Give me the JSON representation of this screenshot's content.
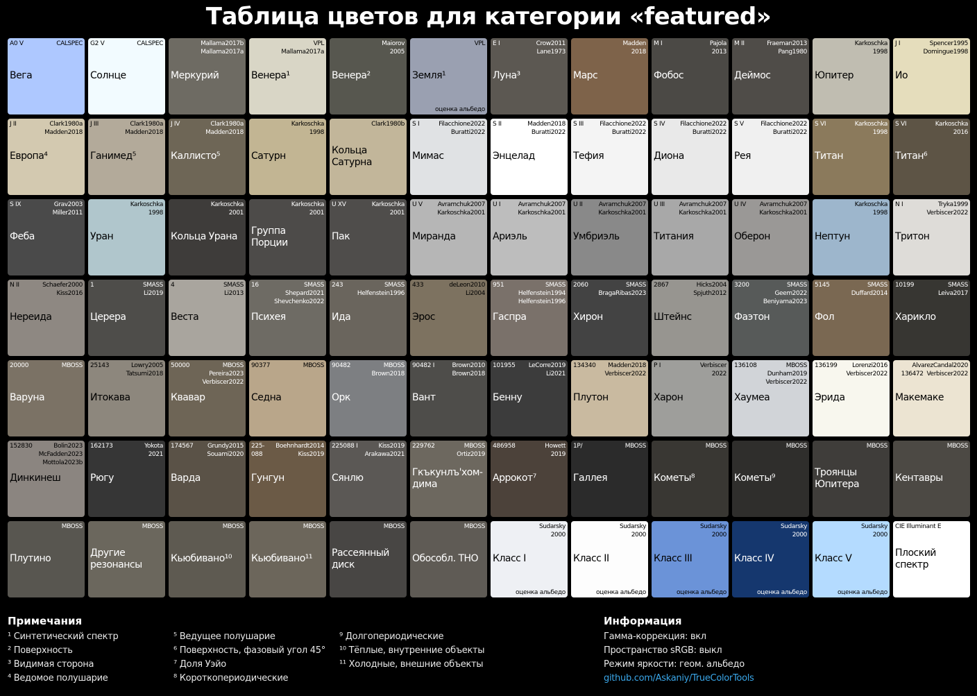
{
  "title": "Таблица цветов для категории «featured»",
  "tiles": [
    {
      "code": "A0 V",
      "ref": "CALSPEC",
      "name": "Вега",
      "note": "",
      "bg": "#aec8ff",
      "fg": "#000"
    },
    {
      "code": "G2 V",
      "ref": "CALSPEC",
      "name": "Солнце",
      "note": "",
      "bg": "#f2fbff",
      "fg": "#000"
    },
    {
      "code": "",
      "ref": "Mallama2017b\nMallama2017a",
      "name": "Меркурий",
      "note": "",
      "bg": "#6e6b63",
      "fg": "#fff"
    },
    {
      "code": "",
      "ref": "VPL\nMallama2017a",
      "name": "Венера¹",
      "note": "",
      "bg": "#d9d6c6",
      "fg": "#000"
    },
    {
      "code": "",
      "ref": "Maiorov\n2005",
      "name": "Венера²",
      "note": "",
      "bg": "#57574f",
      "fg": "#fff"
    },
    {
      "code": "",
      "ref": "VPL",
      "name": "Земля¹",
      "note": "оценка альбедо",
      "bg": "#9aa0b1",
      "fg": "#000"
    },
    {
      "code": "E I",
      "ref": "Crow2011\nLane1973",
      "name": "Луна³",
      "note": "",
      "bg": "#5c5852",
      "fg": "#fff"
    },
    {
      "code": "",
      "ref": "Madden\n2018",
      "name": "Марс",
      "note": "",
      "bg": "#7e634a",
      "fg": "#fff"
    },
    {
      "code": "M I",
      "ref": "Pajola\n2013",
      "name": "Фобос",
      "note": "",
      "bg": "#4b4945",
      "fg": "#fff"
    },
    {
      "code": "M II",
      "ref": "Fraeman2013\nPang1980",
      "name": "Деймос",
      "note": "",
      "bg": "#4f4c48",
      "fg": "#fff"
    },
    {
      "code": "",
      "ref": "Karkoschka\n1998",
      "name": "Юпитер",
      "note": "",
      "bg": "#c0bdb1",
      "fg": "#000"
    },
    {
      "code": "J I",
      "ref": "Spencer1995\nDomingue1998",
      "name": "Ио",
      "note": "",
      "bg": "#e5ddbc",
      "fg": "#000"
    },
    {
      "code": "J II",
      "ref": "Clark1980a\nMadden2018",
      "name": "Европа⁴",
      "note": "",
      "bg": "#d3c9b0",
      "fg": "#000"
    },
    {
      "code": "J III",
      "ref": "Clark1980a\nMadden2018",
      "name": "Ганимед⁵",
      "note": "",
      "bg": "#b3aa9a",
      "fg": "#000"
    },
    {
      "code": "J IV",
      "ref": "Clark1980a\nMadden2018",
      "name": "Каллисто⁵",
      "note": "",
      "bg": "#6e6656",
      "fg": "#fff"
    },
    {
      "code": "",
      "ref": "Karkoschka\n1998",
      "name": "Сатурн",
      "note": "",
      "bg": "#c2b593",
      "fg": "#000"
    },
    {
      "code": "",
      "ref": "Clark1980b",
      "name": "Кольца\nСатурна",
      "note": "",
      "bg": "#c2b69a",
      "fg": "#000"
    },
    {
      "code": "S I",
      "ref": "Filacchione2022\nBuratti2022",
      "name": "Мимас",
      "note": "",
      "bg": "#e0e2e4",
      "fg": "#000"
    },
    {
      "code": "S II",
      "ref": "Madden2018\nBuratti2022",
      "name": "Энцелад",
      "note": "",
      "bg": "#ffffff",
      "fg": "#000"
    },
    {
      "code": "S III",
      "ref": "Filacchione2022\nBuratti2022",
      "name": "Тефия",
      "note": "",
      "bg": "#f4f4f4",
      "fg": "#000"
    },
    {
      "code": "S IV",
      "ref": "Filacchione2022\nBuratti2022",
      "name": "Диона",
      "note": "",
      "bg": "#e9e9e9",
      "fg": "#000"
    },
    {
      "code": "S V",
      "ref": "Filacchione2022\nBuratti2022",
      "name": "Рея",
      "note": "",
      "bg": "#f0f0f0",
      "fg": "#000"
    },
    {
      "code": "S VI",
      "ref": "Karkoschka\n1998",
      "name": "Титан",
      "note": "",
      "bg": "#8b7a5c",
      "fg": "#fff"
    },
    {
      "code": "S VI",
      "ref": "Karkoschka\n2016",
      "name": "Титан⁶",
      "note": "",
      "bg": "#5d5445",
      "fg": "#fff"
    },
    {
      "code": "S IX",
      "ref": "Grav2003\nMiller2011",
      "name": "Феба",
      "note": "",
      "bg": "#4a4a4a",
      "fg": "#fff"
    },
    {
      "code": "",
      "ref": "Karkoschka\n1998",
      "name": "Уран",
      "note": "",
      "bg": "#b0c6cc",
      "fg": "#000"
    },
    {
      "code": "",
      "ref": "Karkoschka\n2001",
      "name": "Кольца Урана",
      "note": "",
      "bg": "#3e3c3a",
      "fg": "#fff"
    },
    {
      "code": "",
      "ref": "Karkoschka\n2001",
      "name": "Группа\nПорции",
      "note": "",
      "bg": "#4d4b49",
      "fg": "#fff"
    },
    {
      "code": "U XV",
      "ref": "Karkoschka\n2001",
      "name": "Пак",
      "note": "",
      "bg": "#4f4d4b",
      "fg": "#fff"
    },
    {
      "code": "U V",
      "ref": "Avramchuk2007\nKarkoschka2001",
      "name": "Миранда",
      "note": "",
      "bg": "#b6b6b6",
      "fg": "#000"
    },
    {
      "code": "U I",
      "ref": "Avramchuk2007\nKarkoschka2001",
      "name": "Ариэль",
      "note": "",
      "bg": "#bdbdbd",
      "fg": "#000"
    },
    {
      "code": "U II",
      "ref": "Avramchuk2007\nKarkoschka2001",
      "name": "Умбриэль",
      "note": "",
      "bg": "#898989",
      "fg": "#000"
    },
    {
      "code": "U III",
      "ref": "Avramchuk2007\nKarkoschka2001",
      "name": "Титания",
      "note": "",
      "bg": "#a8a8a8",
      "fg": "#000"
    },
    {
      "code": "U IV",
      "ref": "Avramchuk2007\nKarkoschka2001",
      "name": "Оберон",
      "note": "",
      "bg": "#9a9896",
      "fg": "#000"
    },
    {
      "code": "",
      "ref": "Karkoschka\n1998",
      "name": "Нептун",
      "note": "",
      "bg": "#9db6cc",
      "fg": "#000"
    },
    {
      "code": "N I",
      "ref": "Tryka1999\nVerbiscer2022",
      "name": "Тритон",
      "note": "",
      "bg": "#dedcd8",
      "fg": "#000"
    },
    {
      "code": "N II",
      "ref": "Schaefer2000\nKiss2016",
      "name": "Нереида",
      "note": "",
      "bg": "#8e8882",
      "fg": "#000"
    },
    {
      "code": "1",
      "ref": "SMASS\nLi2019",
      "name": "Церера",
      "note": "",
      "bg": "#4e4d4a",
      "fg": "#fff"
    },
    {
      "code": "4",
      "ref": "SMASS\nLi2013",
      "name": "Веста",
      "note": "",
      "bg": "#a9a59e",
      "fg": "#000"
    },
    {
      "code": "16",
      "ref": "SMASS\nShepard2021\nShevchenko2022",
      "name": "Психея",
      "note": "",
      "bg": "#6e6b64",
      "fg": "#fff"
    },
    {
      "code": "243",
      "ref": "SMASS\nHelfenstein1996",
      "name": "Ида",
      "note": "",
      "bg": "#6a655d",
      "fg": "#fff"
    },
    {
      "code": "433",
      "ref": "deLeon2010\nLi2004",
      "name": "Эрос",
      "note": "",
      "bg": "#7d7260",
      "fg": "#000"
    },
    {
      "code": "951",
      "ref": "SMASS\nHelfenstein1994\nHelfenstein1996",
      "name": "Гаспра",
      "note": "",
      "bg": "#7a716a",
      "fg": "#fff"
    },
    {
      "code": "2060",
      "ref": "SMASS\nBragaRibas2023",
      "name": "Хирон",
      "note": "",
      "bg": "#434343",
      "fg": "#fff"
    },
    {
      "code": "2867",
      "ref": "Hicks2004\nSpjuth2012",
      "name": "Штейнс",
      "note": "",
      "bg": "#979590",
      "fg": "#000"
    },
    {
      "code": "3200",
      "ref": "SMASS\nGeem2022\nBeniyama2023",
      "name": "Фаэтон",
      "note": "",
      "bg": "#575a59",
      "fg": "#fff"
    },
    {
      "code": "5145",
      "ref": "SMASS\nDuffard2014",
      "name": "Фол",
      "note": "",
      "bg": "#7a6852",
      "fg": "#fff"
    },
    {
      "code": "10199",
      "ref": "SMASS\nLeiva2017",
      "name": "Харикло",
      "note": "",
      "bg": "#373632",
      "fg": "#fff"
    },
    {
      "code": "20000",
      "ref": "MBOSS",
      "name": "Варуна",
      "note": "",
      "bg": "#7b7265",
      "fg": "#fff"
    },
    {
      "code": "25143",
      "ref": "Lowry2005\nTatsumi2018",
      "name": "Итокава",
      "note": "",
      "bg": "#8d877d",
      "fg": "#000"
    },
    {
      "code": "50000",
      "ref": "MBOSS\nPereira2023\nVerbiscer2022",
      "name": "Квавар",
      "note": "",
      "bg": "#6e6556",
      "fg": "#fff"
    },
    {
      "code": "90377",
      "ref": "MBOSS",
      "name": "Седна",
      "note": "",
      "bg": "#b9a68a",
      "fg": "#000"
    },
    {
      "code": "90482",
      "ref": "MBOSS\nBrown2018",
      "name": "Орк",
      "note": "",
      "bg": "#7d7f82",
      "fg": "#fff"
    },
    {
      "code": "90482 I",
      "ref": "Brown2010\nBrown2018",
      "name": "Вант",
      "note": "",
      "bg": "#4e4d4a",
      "fg": "#fff"
    },
    {
      "code": "101955",
      "ref": "LeCorre2019\nLi2021",
      "name": "Бенну",
      "note": "",
      "bg": "#3c3c3c",
      "fg": "#fff"
    },
    {
      "code": "134340",
      "ref": "Madden2018\nVerbiscer2022",
      "name": "Плутон",
      "note": "",
      "bg": "#c9baa0",
      "fg": "#000"
    },
    {
      "code": "P I",
      "ref": "Verbiscer\n2022",
      "name": "Харон",
      "note": "",
      "bg": "#9e9e9b",
      "fg": "#000"
    },
    {
      "code": "136108",
      "ref": "MBOSS\nDunham2019\nVerbiscer2022",
      "name": "Хаумеа",
      "note": "",
      "bg": "#d1d4d8",
      "fg": "#000"
    },
    {
      "code": "136199",
      "ref": "Lorenzi2016\nVerbiscer2022",
      "name": "Эрида",
      "note": "",
      "bg": "#f8f7ee",
      "fg": "#000"
    },
    {
      "code": "",
      "ref": "AlvarezCandal2020\n136472  Verbiscer2022",
      "name": "Макемаке",
      "note": "",
      "bg": "#ece4d2",
      "fg": "#000"
    },
    {
      "code": "152830",
      "ref": "Bolin2023\nMcFadden2023\nMottola2023b",
      "name": "Динкинеш",
      "note": "",
      "bg": "#8b8580",
      "fg": "#000"
    },
    {
      "code": "162173",
      "ref": "Yokota\n2021",
      "name": "Рюгу",
      "note": "",
      "bg": "#363636",
      "fg": "#fff"
    },
    {
      "code": "174567",
      "ref": "Grundy2015\nSouami2020",
      "name": "Варда",
      "note": "",
      "bg": "#5a5247",
      "fg": "#fff"
    },
    {
      "code": "225-\n088",
      "ref": "Boehnhardt2014\nKiss2019",
      "name": "Гунгун",
      "note": "",
      "bg": "#6b5a46",
      "fg": "#fff"
    },
    {
      "code": "225088 I",
      "ref": "Kiss2019\nArakawa2021",
      "name": "Сянлю",
      "note": "",
      "bg": "#5b5855",
      "fg": "#fff"
    },
    {
      "code": "229762",
      "ref": "MBOSS\nOrtiz2019",
      "name": "Гкъкунлъ'хом-\nдима",
      "note": "",
      "bg": "#6d685f",
      "fg": "#fff"
    },
    {
      "code": "486958",
      "ref": "Howett\n2019",
      "name": "Аррокот⁷",
      "note": "",
      "bg": "#4c423a",
      "fg": "#fff"
    },
    {
      "code": "1P/",
      "ref": "MBOSS",
      "name": "Галлея",
      "note": "",
      "bg": "#2b2b2b",
      "fg": "#fff"
    },
    {
      "code": "",
      "ref": "MBOSS",
      "name": "Кометы⁸",
      "note": "",
      "bg": "#393733",
      "fg": "#fff"
    },
    {
      "code": "",
      "ref": "MBOSS",
      "name": "Кометы⁹",
      "note": "",
      "bg": "#2f2e2c",
      "fg": "#fff"
    },
    {
      "code": "",
      "ref": "MBOSS",
      "name": "Троянцы\nЮпитера",
      "note": "",
      "bg": "#3f3d3a",
      "fg": "#fff"
    },
    {
      "code": "",
      "ref": "MBOSS",
      "name": "Кентавры",
      "note": "",
      "bg": "#4c4944",
      "fg": "#fff"
    },
    {
      "code": "",
      "ref": "MBOSS",
      "name": "Плутино",
      "note": "",
      "bg": "#585650",
      "fg": "#fff"
    },
    {
      "code": "",
      "ref": "MBOSS",
      "name": "Другие\nрезонансы",
      "note": "",
      "bg": "#6b675d",
      "fg": "#fff"
    },
    {
      "code": "",
      "ref": "MBOSS",
      "name": "Кьюбивано¹⁰",
      "note": "",
      "bg": "#5e5a51",
      "fg": "#fff"
    },
    {
      "code": "",
      "ref": "MBOSS",
      "name": "Кьюбивано¹¹",
      "note": "",
      "bg": "#6c665b",
      "fg": "#fff"
    },
    {
      "code": "",
      "ref": "MBOSS",
      "name": "Рассеянный\nдиск",
      "note": "",
      "bg": "#484644",
      "fg": "#fff"
    },
    {
      "code": "",
      "ref": "MBOSS",
      "name": "Обособл. THO",
      "note": "",
      "bg": "#5f5b55",
      "fg": "#fff"
    },
    {
      "code": "",
      "ref": "Sudarsky\n2000",
      "name": "Класс I",
      "note": "оценка альбедо",
      "bg": "#eef0f4",
      "fg": "#000"
    },
    {
      "code": "",
      "ref": "Sudarsky\n2000",
      "name": "Класс II",
      "note": "оценка альбедо",
      "bg": "#fdfdfd",
      "fg": "#000"
    },
    {
      "code": "",
      "ref": "Sudarsky\n2000",
      "name": "Класс III",
      "note": "оценка альбедо",
      "bg": "#6b93d8",
      "fg": "#000"
    },
    {
      "code": "",
      "ref": "Sudarsky\n2000",
      "name": "Класс IV",
      "note": "оценка альбедо",
      "bg": "#15376e",
      "fg": "#fff"
    },
    {
      "code": "",
      "ref": "Sudarsky\n2000",
      "name": "Класс V",
      "note": "оценка альбедо",
      "bg": "#b4dbff",
      "fg": "#000"
    },
    {
      "code": "CIE Illuminant E",
      "ref": "",
      "name": "Плоский\nспектр",
      "note": "",
      "bg": "#ffffff",
      "fg": "#000"
    }
  ],
  "notes": {
    "title": "Примечания",
    "col1": [
      "¹ Синтетический спектр",
      "² Поверхность",
      "³ Видимая сторона",
      "⁴ Ведомое полушарие"
    ],
    "col2": [
      "⁵ Ведущее полушарие",
      "⁶ Поверхность, фазовый угол 45°",
      "⁷ Доля Уэйо",
      "⁸ Короткопериодические"
    ],
    "col3": [
      "⁹ Долгопериодические",
      "¹⁰ Тёплые, внутренние объекты",
      "¹¹ Холодные, внешние объекты"
    ]
  },
  "info": {
    "title": "Информация",
    "lines": [
      "Гамма-коррекция: вкл",
      "Пространство sRGB: выкл",
      "Режим яркости: геом. альбедо"
    ],
    "link": "github.com/Askaniy/TrueColorTools"
  }
}
